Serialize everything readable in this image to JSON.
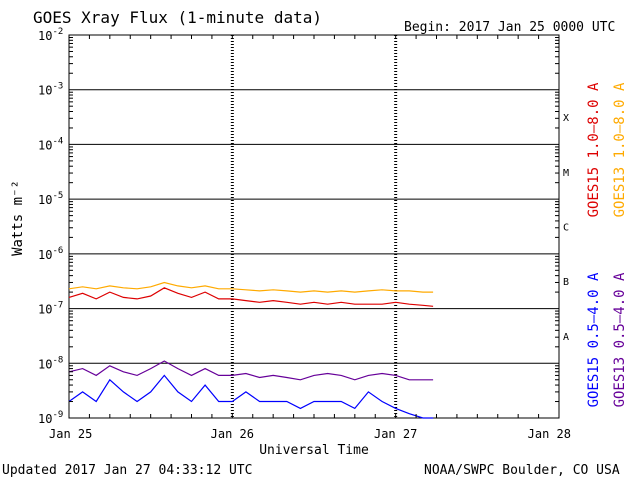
{
  "header": {
    "title": "GOES Xray Flux (1-minute data)",
    "begin": "Begin:  2017 Jan 25 0000 UTC"
  },
  "footer": {
    "updated": "Updated 2017 Jan 27 04:33:12 UTC",
    "credit": "NOAA/SWPC Boulder, CO USA"
  },
  "chart_data": {
    "type": "line",
    "title": "GOES Xray Flux (1-minute data)",
    "xlabel": "Universal Time",
    "ylabel": "Watts m⁻²",
    "yscale": "log",
    "ylim": [
      1e-09,
      0.01
    ],
    "xlim": [
      0,
      72
    ],
    "x_unit": "hours since 2017 Jan 25 0000 UTC",
    "x_ticks": [
      {
        "value": 0,
        "label": "Jan 25"
      },
      {
        "value": 24,
        "label": "Jan 26"
      },
      {
        "value": 48,
        "label": "Jan 27"
      },
      {
        "value": 72,
        "label": "Jan 28"
      }
    ],
    "y_ticks": [
      {
        "exp": -2,
        "label": "10",
        "sup": "-2"
      },
      {
        "exp": -3,
        "label": "10",
        "sup": "-3"
      },
      {
        "exp": -4,
        "label": "10",
        "sup": "-4"
      },
      {
        "exp": -5,
        "label": "10",
        "sup": "-5"
      },
      {
        "exp": -6,
        "label": "10",
        "sup": "-6"
      },
      {
        "exp": -7,
        "label": "10",
        "sup": "-7"
      },
      {
        "exp": -8,
        "label": "10",
        "sup": "-8"
      },
      {
        "exp": -9,
        "label": "10",
        "sup": "-9"
      }
    ],
    "flare_classes": [
      {
        "label": "X",
        "exp": -3.5
      },
      {
        "label": "M",
        "exp": -4.5
      },
      {
        "label": "C",
        "exp": -5.5
      },
      {
        "label": "B",
        "exp": -6.5
      },
      {
        "label": "A",
        "exp": -7.5
      }
    ],
    "grid": true,
    "series": [
      {
        "name": "GOES15 1.0–8.0 A",
        "color": "#dd0000",
        "x": [
          0,
          2,
          4,
          6,
          8,
          10,
          12,
          14,
          16,
          18,
          20,
          22,
          24,
          26,
          28,
          30,
          32,
          34,
          36,
          38,
          40,
          42,
          44,
          46,
          48,
          50,
          52,
          53.5
        ],
        "y": [
          1.6e-07,
          1.9e-07,
          1.5e-07,
          2e-07,
          1.6e-07,
          1.5e-07,
          1.7e-07,
          2.4e-07,
          1.9e-07,
          1.6e-07,
          2e-07,
          1.5e-07,
          1.5e-07,
          1.4e-07,
          1.3e-07,
          1.4e-07,
          1.3e-07,
          1.2e-07,
          1.3e-07,
          1.2e-07,
          1.3e-07,
          1.2e-07,
          1.2e-07,
          1.2e-07,
          1.3e-07,
          1.2e-07,
          1.15e-07,
          1.1e-07
        ]
      },
      {
        "name": "GOES13 1.0–8.0 A",
        "color": "#ffaa00",
        "x": [
          0,
          2,
          4,
          6,
          8,
          10,
          12,
          14,
          16,
          18,
          20,
          22,
          24,
          26,
          28,
          30,
          32,
          34,
          36,
          38,
          40,
          42,
          44,
          46,
          48,
          50,
          52,
          53.5
        ],
        "y": [
          2.3e-07,
          2.5e-07,
          2.3e-07,
          2.6e-07,
          2.4e-07,
          2.3e-07,
          2.5e-07,
          3e-07,
          2.6e-07,
          2.4e-07,
          2.6e-07,
          2.3e-07,
          2.3e-07,
          2.2e-07,
          2.1e-07,
          2.2e-07,
          2.1e-07,
          2e-07,
          2.1e-07,
          2e-07,
          2.1e-07,
          2e-07,
          2.1e-07,
          2.2e-07,
          2.1e-07,
          2.1e-07,
          2e-07,
          2e-07
        ]
      },
      {
        "name": "GOES15 0.5–4.0 A",
        "color": "#0000ff",
        "x": [
          0,
          2,
          4,
          6,
          8,
          10,
          12,
          14,
          16,
          18,
          20,
          22,
          24,
          26,
          28,
          30,
          32,
          34,
          36,
          38,
          40,
          42,
          44,
          46,
          48,
          50,
          52,
          53.5
        ],
        "y": [
          2e-09,
          3e-09,
          2e-09,
          5e-09,
          3e-09,
          2e-09,
          3e-09,
          6e-09,
          3e-09,
          2e-09,
          4e-09,
          2e-09,
          2e-09,
          3e-09,
          2e-09,
          2e-09,
          2e-09,
          1.5e-09,
          2e-09,
          2e-09,
          2e-09,
          1.5e-09,
          3e-09,
          2e-09,
          1.5e-09,
          1.2e-09,
          1e-09,
          1e-09
        ]
      },
      {
        "name": "GOES13 0.5–4.0 A",
        "color": "#660099",
        "x": [
          0,
          2,
          4,
          6,
          8,
          10,
          12,
          14,
          16,
          18,
          20,
          22,
          24,
          26,
          28,
          30,
          32,
          34,
          36,
          38,
          40,
          42,
          44,
          46,
          48,
          50,
          52,
          53.5
        ],
        "y": [
          7e-09,
          8e-09,
          6e-09,
          9e-09,
          7e-09,
          6e-09,
          8e-09,
          1.1e-08,
          8e-09,
          6e-09,
          8e-09,
          6e-09,
          6e-09,
          6.5e-09,
          5.5e-09,
          6e-09,
          5.5e-09,
          5e-09,
          6e-09,
          6.5e-09,
          6e-09,
          5e-09,
          6e-09,
          6.5e-09,
          6e-09,
          5e-09,
          5e-09,
          5e-09
        ]
      }
    ]
  }
}
